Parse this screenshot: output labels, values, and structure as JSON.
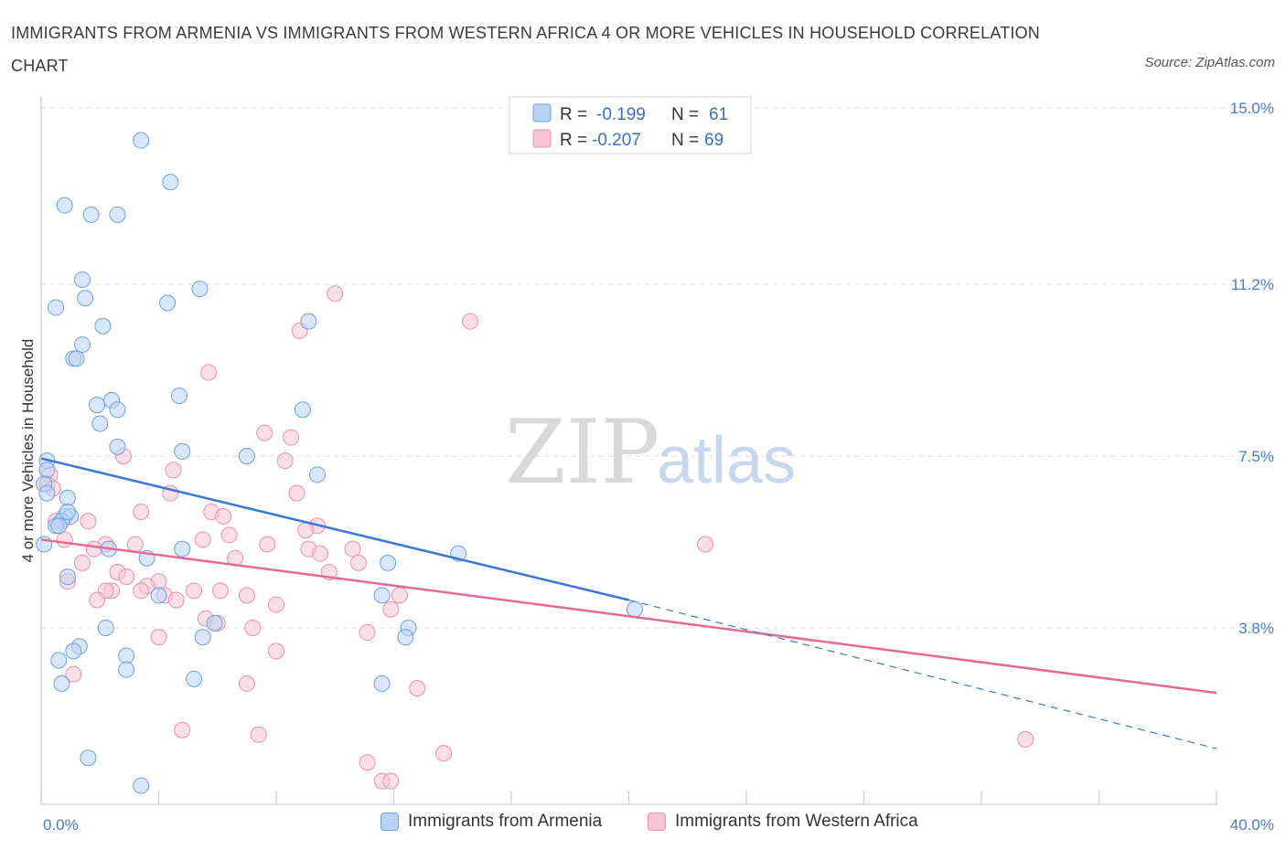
{
  "header": {
    "title": "IMMIGRANTS FROM ARMENIA VS IMMIGRANTS FROM WESTERN AFRICA 4 OR MORE VEHICLES IN HOUSEHOLD CORRELATION CHART",
    "source": "Source: ZipAtlas.com"
  },
  "colors": {
    "armenia_fill": "#b9d3f5",
    "armenia_stroke": "#6f9fdc",
    "armenia_line": "#3b78d4",
    "wafrica_fill": "#f8c5d6",
    "wafrica_stroke": "#e98fad",
    "wafrica_line": "#e46a95"
  },
  "legend": {
    "rows": [
      {
        "r_label": "R =",
        "r_value": "-0.199",
        "n_label": "N =",
        "n_value": "61"
      },
      {
        "r_label": "R =",
        "r_value": "-0.207",
        "n_label": "N =",
        "n_value": "69"
      }
    ]
  },
  "bottom_legend": {
    "armenia": "Immigrants from Armenia",
    "wafrica": "Immigrants from Western Africa"
  },
  "watermark": {
    "zip": "ZIP",
    "atlas": "atlas"
  },
  "chart_data": {
    "type": "scatter",
    "ylabel": "4 or more Vehicles in Household",
    "xlim": [
      0,
      40
    ],
    "ylim": [
      0,
      15
    ],
    "x_tick_labels": [
      {
        "x": 0,
        "label": "0.0%"
      },
      {
        "x": 40,
        "label": "40.0%"
      }
    ],
    "y_ticks": [
      {
        "y": 3.8,
        "label": "3.8%"
      },
      {
        "y": 7.5,
        "label": "7.5%"
      },
      {
        "y": 11.2,
        "label": "11.2%"
      },
      {
        "y": 15.0,
        "label": "15.0%"
      }
    ],
    "grid": true,
    "series": [
      {
        "name": "Immigrants from Armenia",
        "trend": {
          "x0": 0,
          "y0": 7.45,
          "x1": 20,
          "y1": 4.4,
          "dash_x1": 40,
          "dash_y1": 1.2
        },
        "points": [
          [
            3.4,
            14.3
          ],
          [
            4.4,
            13.4
          ],
          [
            0.8,
            12.9
          ],
          [
            1.7,
            12.7
          ],
          [
            2.6,
            12.7
          ],
          [
            1.4,
            11.3
          ],
          [
            5.4,
            11.1
          ],
          [
            1.5,
            10.9
          ],
          [
            4.3,
            10.8
          ],
          [
            0.5,
            10.7
          ],
          [
            9.1,
            10.4
          ],
          [
            2.1,
            10.3
          ],
          [
            1.4,
            9.9
          ],
          [
            1.1,
            9.6
          ],
          [
            1.2,
            9.6
          ],
          [
            4.7,
            8.8
          ],
          [
            2.4,
            8.7
          ],
          [
            1.9,
            8.6
          ],
          [
            2.6,
            8.5
          ],
          [
            8.9,
            8.5
          ],
          [
            2.0,
            8.2
          ],
          [
            2.6,
            7.7
          ],
          [
            4.8,
            7.6
          ],
          [
            7.0,
            7.5
          ],
          [
            0.2,
            7.4
          ],
          [
            0.2,
            7.2
          ],
          [
            9.4,
            7.1
          ],
          [
            0.1,
            6.9
          ],
          [
            0.2,
            6.7
          ],
          [
            0.9,
            6.6
          ],
          [
            0.8,
            6.2
          ],
          [
            1.0,
            6.2
          ],
          [
            0.7,
            6.1
          ],
          [
            0.5,
            6.0
          ],
          [
            0.6,
            6.0
          ],
          [
            0.1,
            5.6
          ],
          [
            2.3,
            5.5
          ],
          [
            4.8,
            5.5
          ],
          [
            14.2,
            5.4
          ],
          [
            3.6,
            5.3
          ],
          [
            11.8,
            5.2
          ],
          [
            0.9,
            4.9
          ],
          [
            4.0,
            4.5
          ],
          [
            11.6,
            4.5
          ],
          [
            20.2,
            4.2
          ],
          [
            5.9,
            3.9
          ],
          [
            12.5,
            3.8
          ],
          [
            2.2,
            3.8
          ],
          [
            12.4,
            3.6
          ],
          [
            5.5,
            3.6
          ],
          [
            1.3,
            3.4
          ],
          [
            1.1,
            3.3
          ],
          [
            2.9,
            3.2
          ],
          [
            0.6,
            3.1
          ],
          [
            2.9,
            2.9
          ],
          [
            5.2,
            2.7
          ],
          [
            11.6,
            2.6
          ],
          [
            0.7,
            2.6
          ],
          [
            1.6,
            1.0
          ],
          [
            3.4,
            0.4
          ],
          [
            0.9,
            6.3
          ]
        ]
      },
      {
        "name": "Immigrants from Western Africa",
        "trend": {
          "x0": 0,
          "y0": 5.7,
          "x1": 40,
          "y1": 2.4
        },
        "points": [
          [
            10.0,
            11.0
          ],
          [
            14.6,
            10.4
          ],
          [
            8.8,
            10.2
          ],
          [
            5.7,
            9.3
          ],
          [
            7.6,
            8.0
          ],
          [
            8.5,
            7.9
          ],
          [
            2.8,
            7.5
          ],
          [
            8.3,
            7.4
          ],
          [
            4.5,
            7.2
          ],
          [
            0.3,
            7.1
          ],
          [
            0.2,
            6.9
          ],
          [
            0.4,
            6.8
          ],
          [
            8.7,
            6.7
          ],
          [
            4.4,
            6.7
          ],
          [
            3.4,
            6.3
          ],
          [
            5.8,
            6.3
          ],
          [
            6.2,
            6.2
          ],
          [
            0.5,
            6.1
          ],
          [
            1.6,
            6.1
          ],
          [
            9.4,
            6.0
          ],
          [
            9.0,
            5.9
          ],
          [
            6.4,
            5.8
          ],
          [
            5.5,
            5.7
          ],
          [
            0.8,
            5.7
          ],
          [
            22.6,
            5.6
          ],
          [
            7.7,
            5.6
          ],
          [
            9.1,
            5.5
          ],
          [
            10.6,
            5.5
          ],
          [
            3.2,
            5.6
          ],
          [
            2.2,
            5.6
          ],
          [
            1.8,
            5.5
          ],
          [
            9.5,
            5.4
          ],
          [
            6.6,
            5.3
          ],
          [
            1.4,
            5.2
          ],
          [
            10.8,
            5.2
          ],
          [
            9.8,
            5.0
          ],
          [
            2.6,
            5.0
          ],
          [
            2.9,
            4.9
          ],
          [
            4.0,
            4.8
          ],
          [
            0.9,
            4.8
          ],
          [
            3.6,
            4.7
          ],
          [
            5.2,
            4.6
          ],
          [
            6.1,
            4.6
          ],
          [
            3.4,
            4.6
          ],
          [
            2.4,
            4.6
          ],
          [
            2.2,
            4.6
          ],
          [
            4.2,
            4.5
          ],
          [
            7.0,
            4.5
          ],
          [
            12.2,
            4.5
          ],
          [
            1.9,
            4.4
          ],
          [
            4.6,
            4.4
          ],
          [
            8.0,
            4.3
          ],
          [
            11.9,
            4.2
          ],
          [
            5.6,
            4.0
          ],
          [
            6.0,
            3.9
          ],
          [
            7.2,
            3.8
          ],
          [
            11.1,
            3.7
          ],
          [
            4.0,
            3.6
          ],
          [
            8.0,
            3.3
          ],
          [
            1.1,
            2.8
          ],
          [
            7.0,
            2.6
          ],
          [
            12.8,
            2.5
          ],
          [
            4.8,
            1.6
          ],
          [
            7.4,
            1.5
          ],
          [
            33.5,
            1.4
          ],
          [
            13.7,
            1.1
          ],
          [
            11.1,
            0.9
          ],
          [
            11.6,
            0.5
          ],
          [
            11.9,
            0.5
          ]
        ]
      }
    ]
  }
}
